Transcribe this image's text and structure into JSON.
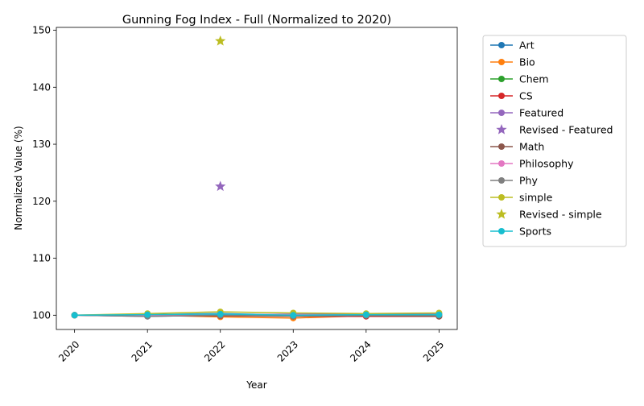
{
  "chart_data": {
    "type": "line",
    "title": "Gunning Fog Index - Full (Normalized to 2020)",
    "xlabel": "Year",
    "ylabel": "Normalized Value (%)",
    "x": [
      2020,
      2021,
      2022,
      2023,
      2024,
      2025
    ],
    "xlim": [
      2019.75,
      2025.25
    ],
    "ylim": [
      97.5,
      150.5
    ],
    "yticks": [
      100,
      110,
      120,
      130,
      140,
      150
    ],
    "grid": false,
    "legend_position": "outside-right",
    "series": [
      {
        "name": "Art",
        "color": "#1f77b4",
        "marker": "circle",
        "values": [
          100,
          100.1,
          100.3,
          100.0,
          100.2,
          100.1
        ]
      },
      {
        "name": "Bio",
        "color": "#ff7f0e",
        "marker": "circle",
        "values": [
          100,
          100.0,
          99.7,
          99.5,
          99.9,
          100.0
        ]
      },
      {
        "name": "Chem",
        "color": "#2ca02c",
        "marker": "circle",
        "values": [
          100,
          100.0,
          100.1,
          99.8,
          99.9,
          100.0
        ]
      },
      {
        "name": "CS",
        "color": "#d62728",
        "marker": "circle",
        "values": [
          100,
          99.9,
          99.9,
          99.8,
          99.8,
          99.8
        ]
      },
      {
        "name": "Featured",
        "color": "#9467bd",
        "marker": "circle",
        "values": [
          100,
          99.8,
          100.0,
          100.2,
          100.2,
          100.3
        ]
      },
      {
        "name": "Revised - Featured",
        "color": "#9467bd",
        "marker": "star",
        "points": [
          [
            2022,
            122.6
          ]
        ]
      },
      {
        "name": "Math",
        "color": "#8c564b",
        "marker": "circle",
        "values": [
          100,
          99.9,
          99.9,
          99.9,
          99.9,
          99.8
        ]
      },
      {
        "name": "Philosophy",
        "color": "#e377c2",
        "marker": "circle",
        "values": [
          100,
          100.0,
          100.0,
          100.1,
          100.0,
          100.1
        ]
      },
      {
        "name": "Phy",
        "color": "#7f7f7f",
        "marker": "circle",
        "values": [
          100,
          99.8,
          100.0,
          99.8,
          100.0,
          100.0
        ]
      },
      {
        "name": "simple",
        "color": "#bcbd22",
        "marker": "circle",
        "values": [
          100,
          100.3,
          100.6,
          100.4,
          100.3,
          100.4
        ]
      },
      {
        "name": "Revised - simple",
        "color": "#bcbd22",
        "marker": "star",
        "points": [
          [
            2022,
            148.1
          ]
        ]
      },
      {
        "name": "Sports",
        "color": "#17becf",
        "marker": "circle",
        "values": [
          100,
          100.1,
          100.2,
          100.0,
          100.1,
          100.1
        ]
      }
    ]
  }
}
